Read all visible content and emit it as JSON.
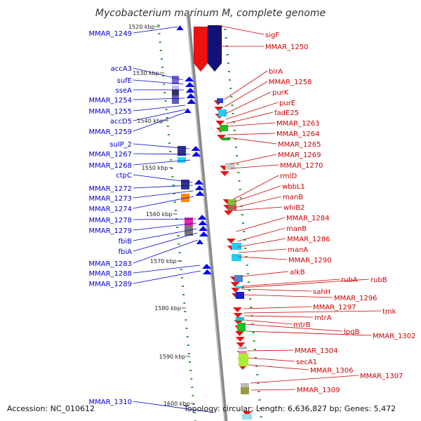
{
  "title": "Mycobacterium marinum M, complete genome",
  "accession": "Accession: NC_010612",
  "summary": "Topology: circular; Length: 6,636,827 bp; Genes: 5,472",
  "colors": {
    "forward_label": "#0000cc",
    "reverse_label": "#cc0000",
    "backbone": "#888888",
    "tick_dots": "#2e9e2e"
  },
  "kbp_ticks": [
    "1520 kbp",
    "1530 kbp",
    "1540 kbp",
    "1550 kbp",
    "1560 kbp",
    "1570 kbp",
    "1580 kbp",
    "1590 kbp",
    "1600 kbp"
  ],
  "left_labels": [
    "MMAR_1249",
    "accA3",
    "sufE",
    "sseA",
    "MMAR_1254",
    "MMAR_1255",
    "accD5",
    "MMAR_1259",
    "sulP_2",
    "MMAR_1267",
    "MMAR_1268",
    "ctpC",
    "MMAR_1272",
    "MMAR_1273",
    "MMAR_1274",
    "MMAR_1278",
    "MMAR_1279",
    "fbiB",
    "fbiA",
    "MMAR_1283",
    "MMAR_1288",
    "MMAR_1289",
    "MMAR_1310"
  ],
  "right_labels": [
    "sigF",
    "MMAR_1250",
    "birA",
    "MMAR_1258",
    "purK",
    "purE",
    "fadE25",
    "MMAR_1263",
    "MMAR_1264",
    "MMAR_1265",
    "MMAR_1269",
    "MMAR_1270",
    "rmlD",
    "wbbL1",
    "manB",
    "whiB2",
    "MMAR_1284",
    "manB",
    "MMAR_1286",
    "manA",
    "MMAR_1290",
    "alkB",
    "rubA",
    "rubB",
    "sahH",
    "MMAR_1296",
    "MMAR_1297",
    "tmk",
    "mtrA",
    "mtrB",
    "lpqB",
    "MMAR_1302",
    "MMAR_1304",
    "secA1",
    "MMAR_1306",
    "MMAR_1307",
    "MMAR_1309"
  ]
}
